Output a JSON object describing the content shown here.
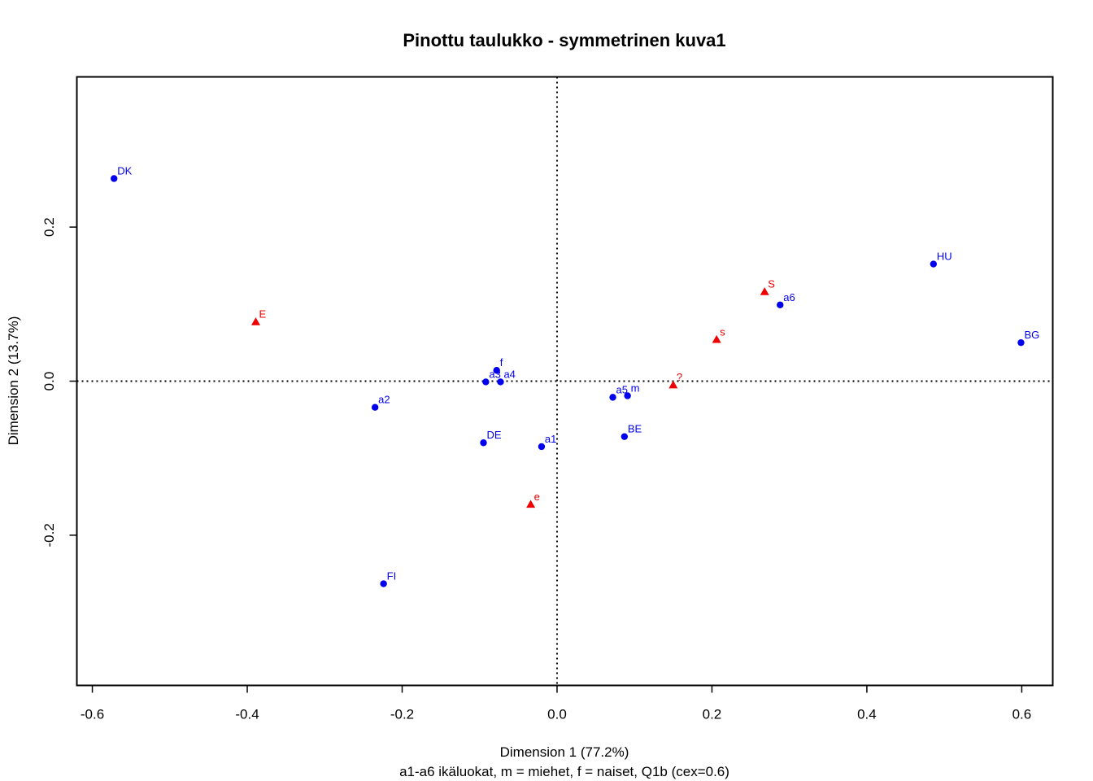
{
  "chart_data": {
    "type": "scatter",
    "title": "Pinottu taulukko - symmetrinen kuva1",
    "xlabel": "Dimension 1 (77.2%)",
    "ylabel": "Dimension 2 (13.7%)",
    "subtitle": "a1-a6 ikäluokat, m = miehet, f = naiset, Q1b (cex=0.6)",
    "xlim": [
      -0.62,
      0.64
    ],
    "ylim": [
      -0.395,
      0.395
    ],
    "xticks": [
      {
        "value": -0.6,
        "label": "-0.6"
      },
      {
        "value": -0.4,
        "label": "-0.4"
      },
      {
        "value": -0.2,
        "label": "-0.2"
      },
      {
        "value": 0.0,
        "label": "0.0"
      },
      {
        "value": 0.2,
        "label": "0.2"
      },
      {
        "value": 0.4,
        "label": "0.4"
      },
      {
        "value": 0.6,
        "label": "0.6"
      }
    ],
    "yticks": [
      {
        "value": -0.2,
        "label": "-0.2"
      },
      {
        "value": 0.0,
        "label": "0.0"
      },
      {
        "value": 0.2,
        "label": "0.2"
      }
    ],
    "reference_lines": {
      "x": 0,
      "y": 0,
      "style": "dotted"
    },
    "grid": false,
    "series": [
      {
        "marker": "circle",
        "color": "#0000ee",
        "points": [
          {
            "label": "DK",
            "x": -0.572,
            "y": 0.263
          },
          {
            "label": "HU",
            "x": 0.486,
            "y": 0.152
          },
          {
            "label": "a6",
            "x": 0.288,
            "y": 0.099
          },
          {
            "label": "BG",
            "x": 0.599,
            "y": 0.05
          },
          {
            "label": "f",
            "x": -0.078,
            "y": 0.014
          },
          {
            "label": "a3",
            "x": -0.092,
            "y": -0.001
          },
          {
            "label": "a4",
            "x": -0.073,
            "y": -0.001
          },
          {
            "label": "a2",
            "x": -0.235,
            "y": -0.034
          },
          {
            "label": "a5",
            "x": 0.072,
            "y": -0.021
          },
          {
            "label": "m",
            "x": 0.091,
            "y": -0.019
          },
          {
            "label": "BE",
            "x": 0.087,
            "y": -0.072
          },
          {
            "label": "DE",
            "x": -0.095,
            "y": -0.08
          },
          {
            "label": "a1",
            "x": -0.02,
            "y": -0.085
          },
          {
            "label": "FI",
            "x": -0.224,
            "y": -0.263
          }
        ]
      },
      {
        "marker": "triangle",
        "color": "#ee0000",
        "points": [
          {
            "label": "E",
            "x": -0.389,
            "y": 0.077
          },
          {
            "label": "S",
            "x": 0.268,
            "y": 0.116
          },
          {
            "label": "s",
            "x": 0.206,
            "y": 0.054
          },
          {
            "label": "?",
            "x": 0.15,
            "y": -0.005
          },
          {
            "label": "e",
            "x": -0.034,
            "y": -0.16
          }
        ]
      }
    ]
  }
}
